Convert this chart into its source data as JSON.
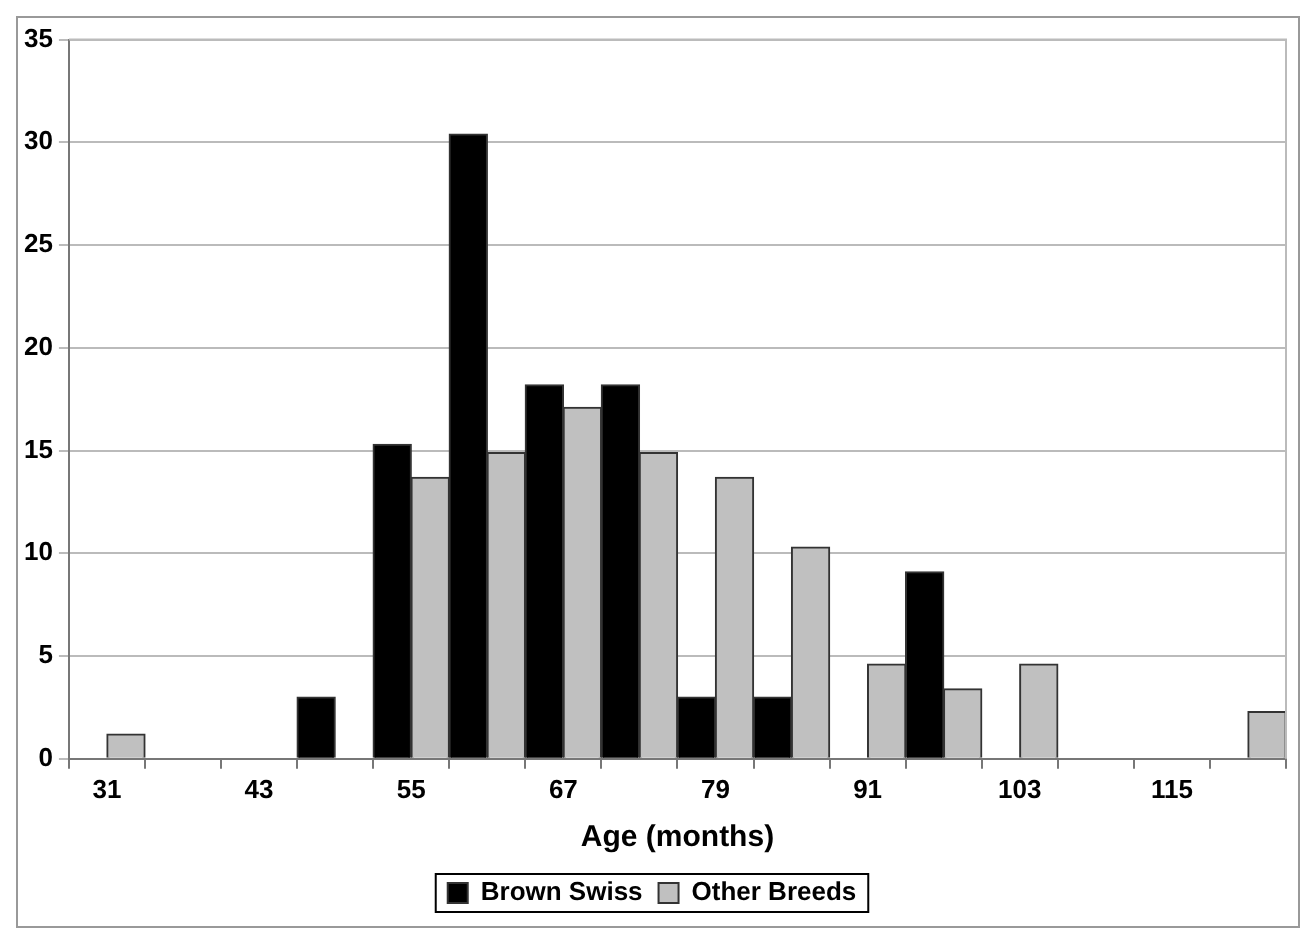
{
  "chart_data": {
    "type": "bar",
    "xlabel": "Age (months)",
    "categories": [
      "31",
      null,
      "43",
      null,
      "55",
      null,
      "67",
      null,
      "79",
      null,
      "91",
      null,
      "103",
      null,
      "115",
      null
    ],
    "series": [
      {
        "name": "Brown Swiss",
        "color": "#000000",
        "values": [
          0,
          0,
          0,
          3,
          15.3,
          30.4,
          18.2,
          18.2,
          3,
          3,
          0,
          9.1,
          0,
          0,
          0,
          0
        ]
      },
      {
        "name": "Other Breeds",
        "color": "#c0c0c0",
        "values": [
          1.2,
          0,
          0,
          0,
          13.7,
          14.9,
          17.1,
          14.9,
          13.7,
          10.3,
          4.6,
          3.4,
          4.6,
          0,
          0,
          2.3
        ]
      }
    ],
    "ylim": [
      0,
      35
    ],
    "yticks": [
      0,
      5,
      10,
      15,
      20,
      25,
      30,
      35
    ],
    "grid": "y",
    "legend": "bottom"
  }
}
